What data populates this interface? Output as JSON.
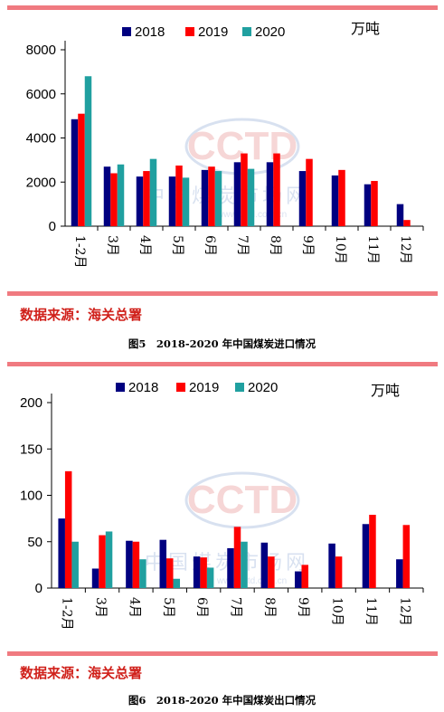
{
  "chart_data": [
    {
      "type": "bar",
      "unit": "万吨",
      "categories": [
        "1-2月",
        "3月",
        "4月",
        "5月",
        "6月",
        "7月",
        "8月",
        "9月",
        "10月",
        "11月",
        "12月"
      ],
      "series": [
        {
          "name": "2018",
          "color": "#000080",
          "values": [
            4850,
            2700,
            2250,
            2250,
            2550,
            2900,
            2900,
            2500,
            2300,
            1900,
            1000
          ]
        },
        {
          "name": "2019",
          "color": "#ff0000",
          "values": [
            5100,
            2400,
            2500,
            2750,
            2700,
            3300,
            3300,
            3050,
            2550,
            2050,
            280
          ]
        },
        {
          "name": "2020",
          "color": "#20a0a0",
          "values": [
            6800,
            2800,
            3050,
            2200,
            2500,
            2600,
            null,
            null,
            null,
            null,
            null
          ]
        }
      ],
      "yticks": [
        0,
        2000,
        4000,
        6000,
        8000
      ],
      "ylim": [
        0,
        8000
      ],
      "source": "数据来源：海关总署",
      "caption": "图5　2018-2020 年中国煤炭进口情况"
    },
    {
      "type": "bar",
      "unit": "万吨",
      "categories": [
        "1-2月",
        "3月",
        "4月",
        "5月",
        "6月",
        "7月",
        "8月",
        "9月",
        "10月",
        "11月",
        "12月"
      ],
      "series": [
        {
          "name": "2018",
          "color": "#000080",
          "values": [
            75,
            21,
            51,
            52,
            34,
            43,
            49,
            18,
            48,
            69,
            31
          ]
        },
        {
          "name": "2019",
          "color": "#ff0000",
          "values": [
            126,
            57,
            50,
            32,
            33,
            66,
            34,
            25,
            34,
            79,
            68
          ]
        },
        {
          "name": "2020",
          "color": "#20a0a0",
          "values": [
            50,
            61,
            31,
            10,
            22,
            50,
            null,
            null,
            null,
            null,
            null
          ]
        }
      ],
      "yticks": [
        0,
        50,
        100,
        150,
        200
      ],
      "ylim": [
        0,
        200
      ],
      "source": "数据来源：海关总署",
      "caption": "图6　2018-2020 年中国煤炭出口情况"
    }
  ],
  "watermark": {
    "logo": "CCTD",
    "text": "中国煤炭市场网",
    "url": "www.cctd.com.cn"
  }
}
